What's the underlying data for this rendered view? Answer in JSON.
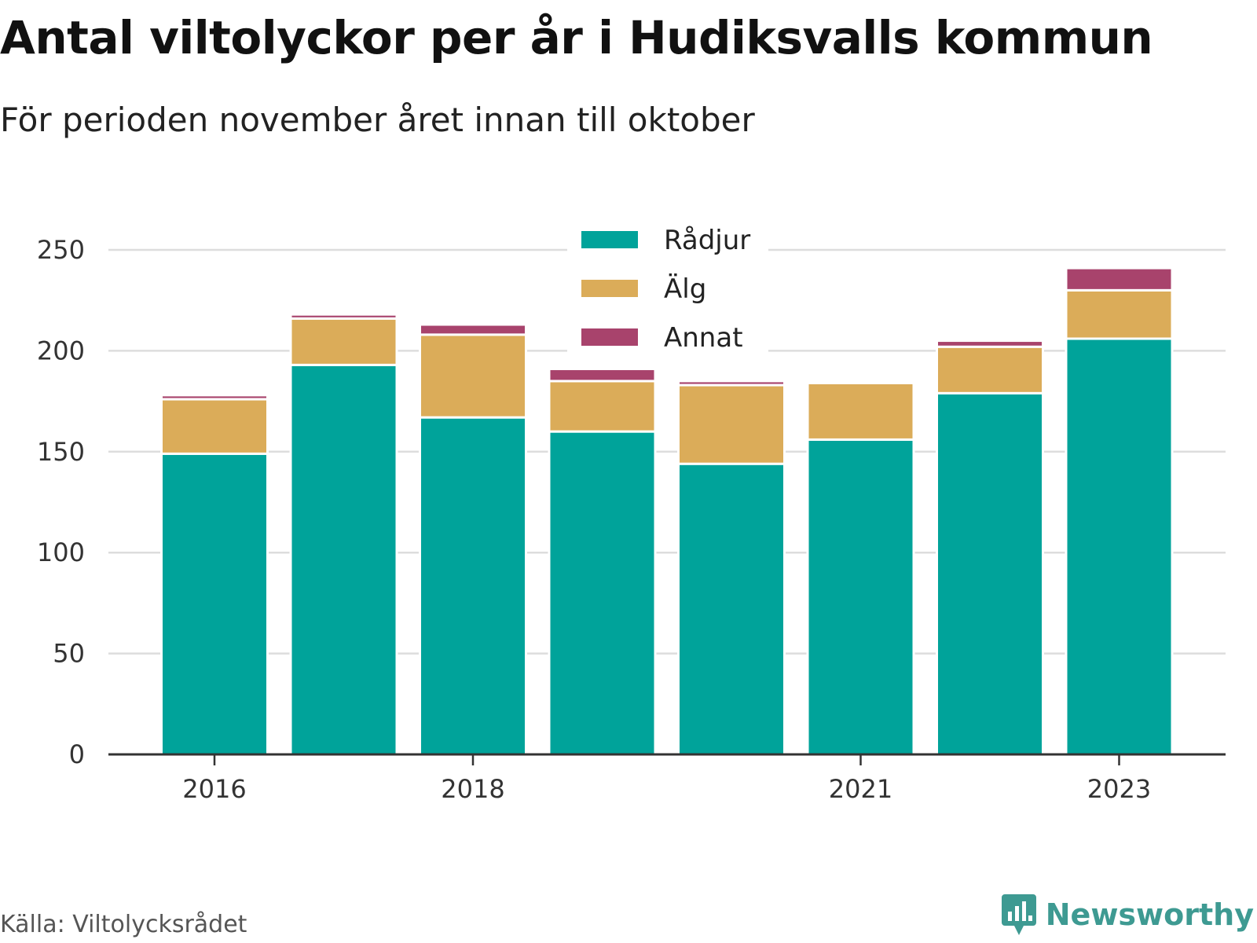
{
  "title": "Antal viltolyckor per år i Hudiksvalls kommun",
  "subtitle": "För perioden november året innan till oktober",
  "source": "Källa: Viltolycksrådet",
  "brand": {
    "name": "Newsworthy",
    "icon": "newsworthy-logo-icon"
  },
  "chart_data": {
    "type": "bar",
    "stacked": true,
    "categories": [
      "2016",
      "2017",
      "2018",
      "2019",
      "2020",
      "2021",
      "2022",
      "2023"
    ],
    "x_tick_labels": [
      "2016",
      "2018",
      "2021",
      "2023"
    ],
    "series": [
      {
        "name": "Rådjur",
        "color": "#00a39a",
        "values": [
          149,
          193,
          167,
          160,
          144,
          156,
          179,
          206
        ]
      },
      {
        "name": "Älg",
        "color": "#dbac59",
        "values": [
          27,
          23,
          41,
          25,
          39,
          28,
          23,
          24
        ]
      },
      {
        "name": "Annat",
        "color": "#a8436c",
        "values": [
          2,
          2,
          5,
          6,
          2,
          1,
          3,
          11
        ]
      }
    ],
    "ylim": [
      0,
      250
    ],
    "yticks": [
      0,
      50,
      100,
      150,
      200,
      250
    ],
    "xlabel": "",
    "ylabel": "",
    "grid": true,
    "legend_position": "top-center"
  }
}
